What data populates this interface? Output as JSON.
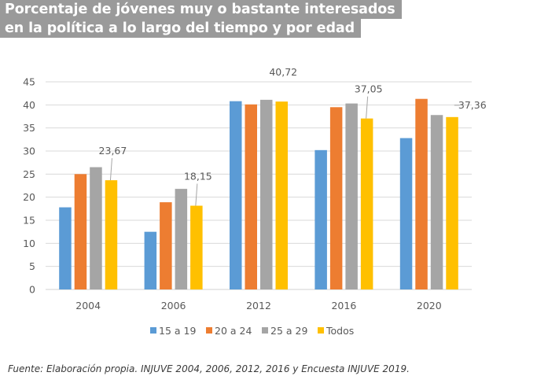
{
  "title": {
    "line1": "Porcentaje de jóvenes muy o bastante interesados",
    "line2": "en la política a lo largo del tiempo y por edad"
  },
  "source": "Fuente: Elaboración propia. INJUVE 2004, 2006, 2012, 2016 y Encuesta INJUVE 2019.",
  "chart_data": {
    "type": "bar",
    "title": "Porcentaje de jóvenes muy o bastante interesados en la política a lo largo del tiempo y por edad",
    "xlabel": "",
    "ylabel": "",
    "categories": [
      "2004",
      "2006",
      "2012",
      "2016",
      "2020"
    ],
    "ylim": [
      0,
      45
    ],
    "yticks": [
      0,
      5,
      10,
      15,
      20,
      25,
      30,
      35,
      40,
      45
    ],
    "grid": true,
    "legend_position": "bottom",
    "series": [
      {
        "name": "15 a 19",
        "color": "#5b9bd5",
        "values": [
          17.8,
          12.5,
          40.8,
          30.2,
          32.8
        ]
      },
      {
        "name": "20 a 24",
        "color": "#ed7d31",
        "values": [
          25.0,
          18.9,
          40.1,
          39.5,
          41.3
        ]
      },
      {
        "name": "25 a 29",
        "color": "#a5a5a5",
        "values": [
          26.5,
          21.8,
          41.1,
          40.3,
          37.8
        ]
      },
      {
        "name": "Todos",
        "color": "#ffc000",
        "values": [
          23.67,
          18.15,
          40.72,
          37.05,
          37.36
        ]
      }
    ],
    "data_labels": {
      "series": "Todos",
      "labels": [
        "23,67",
        "18,15",
        "40,72",
        "37,05",
        "37,36"
      ]
    }
  }
}
